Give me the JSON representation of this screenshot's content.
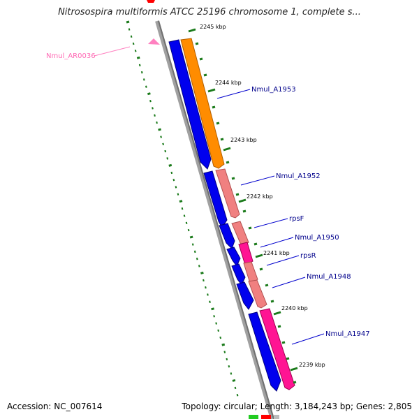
{
  "title": "Nitrosospira multiformis ATCC 25196 chromosome 1, complete s...",
  "footer": {
    "accession": "Accession: NC_007614",
    "stats": "Topology: circular; Length: 3,184,243 bp; Genes: 2,805"
  },
  "colors": {
    "backbone": "#808080",
    "gene_blue": "#0000ee",
    "gene_orange": "#ff8c00",
    "gene_salmon": "#f08080",
    "gene_magenta": "#ff1493",
    "tick_green": "#1a7a1a",
    "label_blue": "#00008b",
    "label_pink": "#ff69b4"
  },
  "scale_labels": [
    "2245 kbp",
    "2244 kbp",
    "2243 kbp",
    "2242 kbp",
    "2241 kbp",
    "2240 kbp",
    "2239 kbp"
  ],
  "gene_labels": [
    "Nmul_A1953",
    "Nmul_A1952",
    "rpsF",
    "Nmul_A1950",
    "rpsR",
    "Nmul_A1948",
    "Nmul_A1947"
  ],
  "feature_label": "Nmul_AR0036"
}
